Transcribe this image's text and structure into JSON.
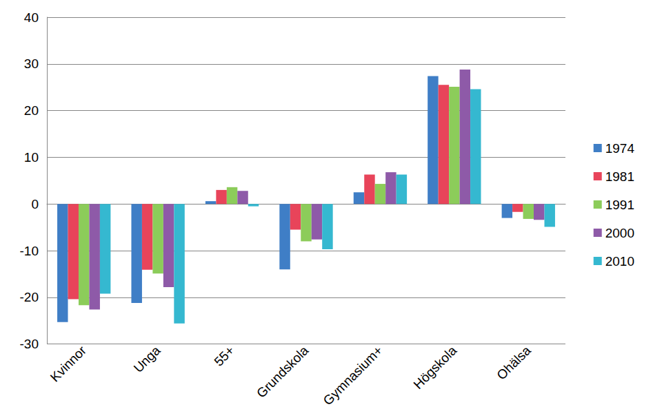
{
  "chart_data": {
    "type": "bar",
    "categories": [
      "Kvinnor",
      "Unga",
      "55+",
      "Grundskola",
      "Gymnasium+",
      "Högskola",
      "Ohälsa"
    ],
    "series": [
      {
        "name": "1974",
        "color": "#3f7ec6",
        "values": [
          -25.3,
          -21.2,
          0.6,
          -14.0,
          2.5,
          27.4,
          -3.0
        ]
      },
      {
        "name": "1981",
        "color": "#e8445a",
        "values": [
          -20.4,
          -14.1,
          3.0,
          -5.5,
          6.3,
          25.5,
          -1.7
        ]
      },
      {
        "name": "1991",
        "color": "#8ccc5a",
        "values": [
          -21.7,
          -14.9,
          3.6,
          -8.0,
          4.3,
          25.1,
          -3.2
        ]
      },
      {
        "name": "2000",
        "color": "#8e5aa8",
        "values": [
          -22.6,
          -17.8,
          2.8,
          -7.6,
          6.8,
          28.8,
          -3.4
        ]
      },
      {
        "name": "2010",
        "color": "#35b8d0",
        "values": [
          -19.2,
          -25.6,
          -0.5,
          -9.7,
          6.3,
          24.6,
          -4.9
        ]
      }
    ],
    "ylim": [
      -30,
      40
    ],
    "yticks": [
      -30,
      -20,
      -10,
      0,
      10,
      20,
      30,
      40
    ],
    "grid": true,
    "legend": "right"
  }
}
